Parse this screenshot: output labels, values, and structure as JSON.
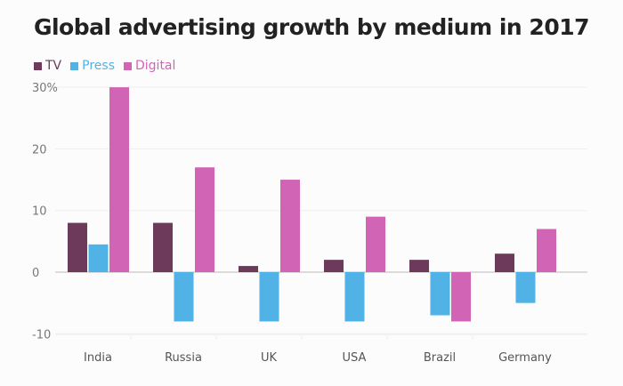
{
  "chart_data": {
    "type": "bar",
    "title": "Global advertising growth by medium in 2017",
    "categories": [
      "India",
      "Russia",
      "UK",
      "USA",
      "Brazil",
      "Germany"
    ],
    "series": [
      {
        "name": "TV",
        "color": "#6d3a5b",
        "values": [
          8,
          8,
          1,
          2,
          2,
          3
        ]
      },
      {
        "name": "Press",
        "color": "#51b2e5",
        "values": [
          4.5,
          -8,
          -8,
          -8,
          -7,
          -5
        ]
      },
      {
        "name": "Digital",
        "color": "#d264b6",
        "values": [
          30,
          17,
          15,
          9,
          -8,
          7
        ]
      }
    ],
    "yticks": [
      {
        "value": 30,
        "label": "30%"
      },
      {
        "value": 20,
        "label": "20"
      },
      {
        "value": 10,
        "label": "10"
      },
      {
        "value": 0,
        "label": "0"
      },
      {
        "value": -10,
        "label": "-10"
      }
    ],
    "ylim": [
      -10,
      30
    ],
    "xlabel": "",
    "ylabel": "",
    "grid": true,
    "legend_position": "top-left"
  }
}
